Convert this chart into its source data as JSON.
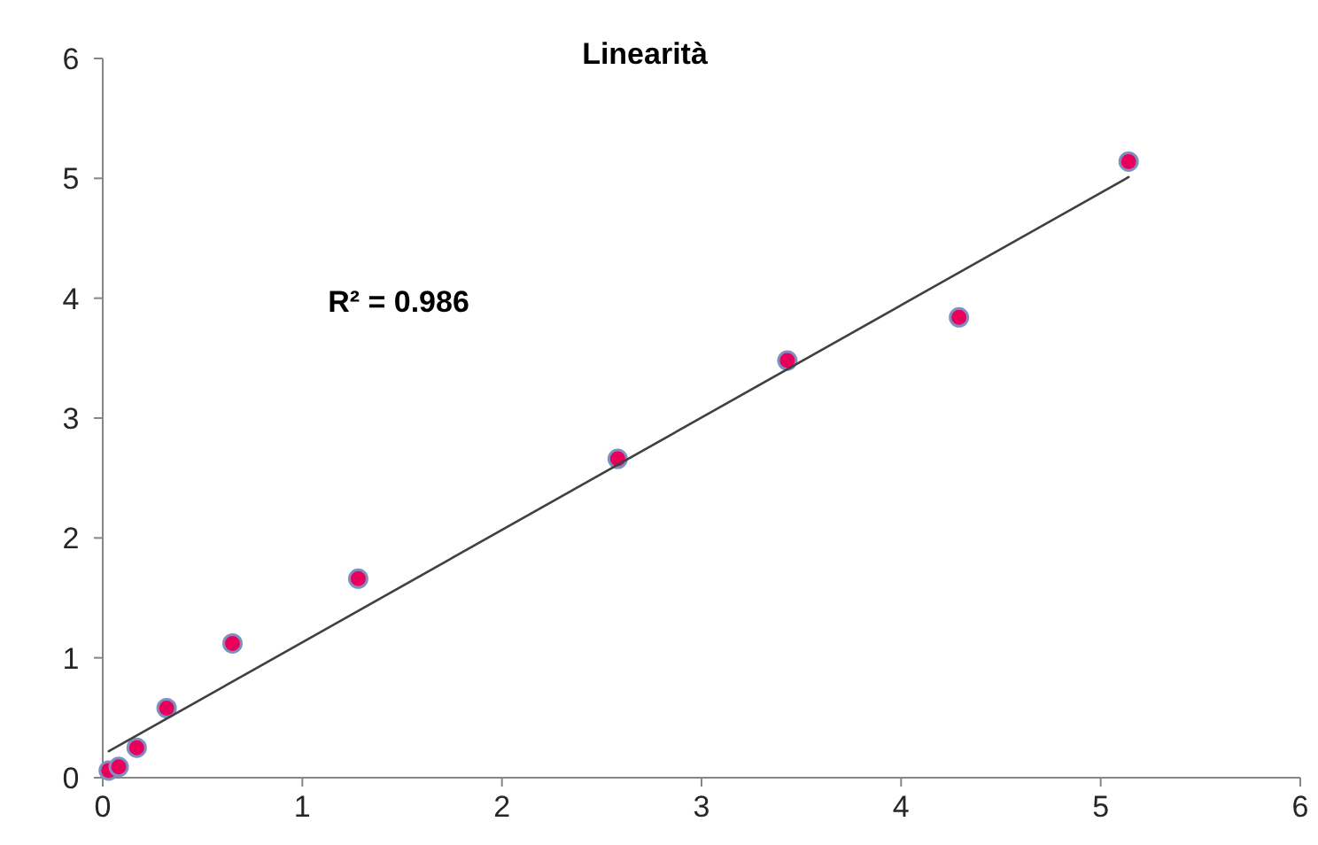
{
  "chart_data": {
    "type": "scatter",
    "title": "Linearità",
    "annotations": [
      "R² = 0.986"
    ],
    "xlim": [
      0,
      6
    ],
    "xticks": [
      0,
      1,
      2,
      3,
      4,
      5,
      6
    ],
    "ylim": [
      0,
      6
    ],
    "yticks": [
      0,
      1,
      2,
      3,
      4,
      5,
      6
    ],
    "grid": false,
    "series": [
      {
        "marker": "circle",
        "color": "#e8005a",
        "x": [
          0.03,
          0.08,
          0.17,
          0.32,
          0.65,
          1.28,
          2.58,
          3.43,
          4.29,
          5.14
        ],
        "values": [
          0.06,
          0.09,
          0.25,
          0.58,
          1.12,
          1.66,
          2.66,
          3.48,
          3.84,
          5.14
        ]
      },
      {
        "type": "line",
        "marker": "none",
        "color": "#404040",
        "line_style": "solid",
        "x": [
          0.03,
          5.14
        ],
        "values": [
          0.22,
          5.01
        ]
      }
    ]
  }
}
